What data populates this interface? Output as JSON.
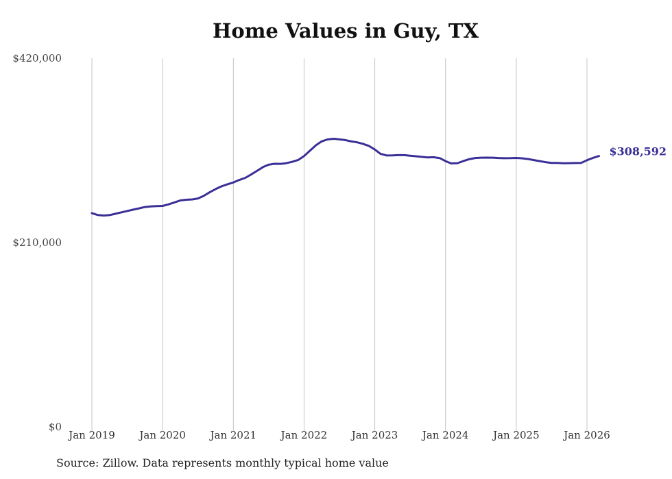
{
  "chart_data": {
    "type": "line",
    "title": "Home Values in Guy, TX",
    "xlabel": "",
    "ylabel": "",
    "ylim": [
      0,
      420000
    ],
    "y_ticks": [
      {
        "value": 0,
        "label": "$0"
      },
      {
        "value": 210000,
        "label": "$210,000"
      },
      {
        "value": 420000,
        "label": "$420,000"
      }
    ],
    "x_ticks": [
      {
        "value": 2019,
        "label": "Jan 2019"
      },
      {
        "value": 2020,
        "label": "Jan 2020"
      },
      {
        "value": 2021,
        "label": "Jan 2021"
      },
      {
        "value": 2022,
        "label": "Jan 2022"
      },
      {
        "value": 2023,
        "label": "Jan 2023"
      },
      {
        "value": 2024,
        "label": "Jan 2024"
      },
      {
        "value": 2025,
        "label": "Jan 2025"
      },
      {
        "value": 2026,
        "label": "Jan 2026"
      }
    ],
    "xlim": [
      2019,
      2026
    ],
    "grid": "vertical",
    "series": [
      {
        "name": "Typical home value",
        "color": "#3a2f96",
        "end_label": "$308,592",
        "points": [
          [
            2019.0,
            243500
          ],
          [
            2019.08,
            241500
          ],
          [
            2019.17,
            240800
          ],
          [
            2019.25,
            241300
          ],
          [
            2019.33,
            242800
          ],
          [
            2019.42,
            244500
          ],
          [
            2019.5,
            246000
          ],
          [
            2019.58,
            247500
          ],
          [
            2019.67,
            249000
          ],
          [
            2019.75,
            250500
          ],
          [
            2019.83,
            251200
          ],
          [
            2019.92,
            251500
          ],
          [
            2020.0,
            251800
          ],
          [
            2020.08,
            253500
          ],
          [
            2020.17,
            255800
          ],
          [
            2020.25,
            258000
          ],
          [
            2020.33,
            258800
          ],
          [
            2020.42,
            259200
          ],
          [
            2020.5,
            260300
          ],
          [
            2020.58,
            263200
          ],
          [
            2020.67,
            267500
          ],
          [
            2020.75,
            271000
          ],
          [
            2020.83,
            274000
          ],
          [
            2020.92,
            276500
          ],
          [
            2021.0,
            278500
          ],
          [
            2021.08,
            281200
          ],
          [
            2021.17,
            283800
          ],
          [
            2021.25,
            287500
          ],
          [
            2021.33,
            291500
          ],
          [
            2021.42,
            296000
          ],
          [
            2021.5,
            298800
          ],
          [
            2021.58,
            299800
          ],
          [
            2021.67,
            299700
          ],
          [
            2021.75,
            300500
          ],
          [
            2021.83,
            302000
          ],
          [
            2021.92,
            304200
          ],
          [
            2022.0,
            308500
          ],
          [
            2022.08,
            314500
          ],
          [
            2022.17,
            321000
          ],
          [
            2022.25,
            325300
          ],
          [
            2022.33,
            327500
          ],
          [
            2022.42,
            328300
          ],
          [
            2022.5,
            327600
          ],
          [
            2022.58,
            326800
          ],
          [
            2022.67,
            325200
          ],
          [
            2022.75,
            324200
          ],
          [
            2022.83,
            322600
          ],
          [
            2022.92,
            320000
          ],
          [
            2023.0,
            316000
          ],
          [
            2023.08,
            311200
          ],
          [
            2023.17,
            309200
          ],
          [
            2023.25,
            309300
          ],
          [
            2023.33,
            309600
          ],
          [
            2023.42,
            309600
          ],
          [
            2023.5,
            309000
          ],
          [
            2023.58,
            308400
          ],
          [
            2023.67,
            307600
          ],
          [
            2023.75,
            307000
          ],
          [
            2023.83,
            307300
          ],
          [
            2023.92,
            306200
          ],
          [
            2024.0,
            302800
          ],
          [
            2024.08,
            300200
          ],
          [
            2024.17,
            300500
          ],
          [
            2024.25,
            302800
          ],
          [
            2024.33,
            304900
          ],
          [
            2024.42,
            306300
          ],
          [
            2024.5,
            306700
          ],
          [
            2024.58,
            306800
          ],
          [
            2024.67,
            306700
          ],
          [
            2024.75,
            306300
          ],
          [
            2024.83,
            306100
          ],
          [
            2024.92,
            306200
          ],
          [
            2025.0,
            306400
          ],
          [
            2025.08,
            306000
          ],
          [
            2025.17,
            305200
          ],
          [
            2025.25,
            304000
          ],
          [
            2025.33,
            302800
          ],
          [
            2025.42,
            301600
          ],
          [
            2025.5,
            300800
          ],
          [
            2025.58,
            300700
          ],
          [
            2025.67,
            300400
          ],
          [
            2025.75,
            300500
          ],
          [
            2025.83,
            300600
          ],
          [
            2025.92,
            300800
          ],
          [
            2026.0,
            303800
          ],
          [
            2026.08,
            306300
          ],
          [
            2026.17,
            308592
          ]
        ]
      }
    ]
  },
  "footer": {
    "source": "Source: Zillow. Data represents monthly typical home value"
  }
}
